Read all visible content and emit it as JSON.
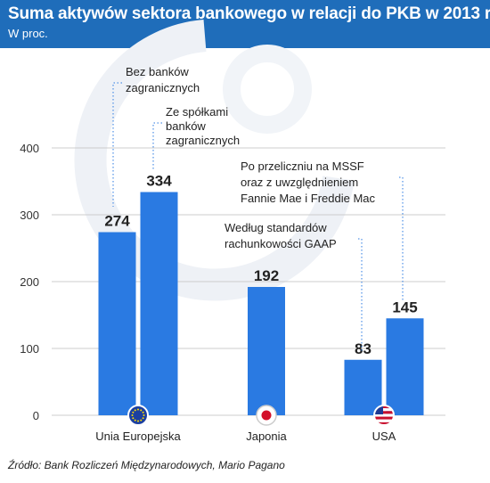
{
  "header": {
    "title": "Suma aktywów sektora bankowego w relacji do PKB w 2013 r.",
    "subtitle": "W proc."
  },
  "source": "Źródło: Bank Rozliczeń Międzynarodowych, Mario Pagano",
  "colors": {
    "header": "#1f6dba",
    "bar": "#2a7ae2",
    "grid": "#cccccc",
    "annotation_line": "#2a7ae2"
  },
  "chart_data": {
    "type": "bar",
    "ylim": [
      0,
      400
    ],
    "yticks": [
      0,
      100,
      200,
      300,
      400
    ],
    "grid": true,
    "groups": [
      {
        "label": "Unia Europejska",
        "icon": "eu-flag-icon",
        "bars": [
          {
            "value": 274,
            "label": "274",
            "annotation": [
              "Bez banków",
              "zagranicznych"
            ]
          },
          {
            "value": 334,
            "label": "334",
            "annotation": [
              "Ze spółkami",
              "banków",
              "zagranicznych"
            ]
          }
        ]
      },
      {
        "label": "Japonia",
        "icon": "japan-flag-icon",
        "bars": [
          {
            "value": 192,
            "label": "192"
          }
        ]
      },
      {
        "label": "USA",
        "icon": "usa-flag-icon",
        "bars": [
          {
            "value": 83,
            "label": "83",
            "annotation": [
              "Według standardów",
              "rachunkowości GAAP"
            ]
          },
          {
            "value": 145,
            "label": "145",
            "annotation": [
              "Po przeliczniu na MSSF",
              "oraz z uwzględnieniem",
              "Fannie Mae i Freddie Mac"
            ]
          }
        ]
      }
    ]
  }
}
